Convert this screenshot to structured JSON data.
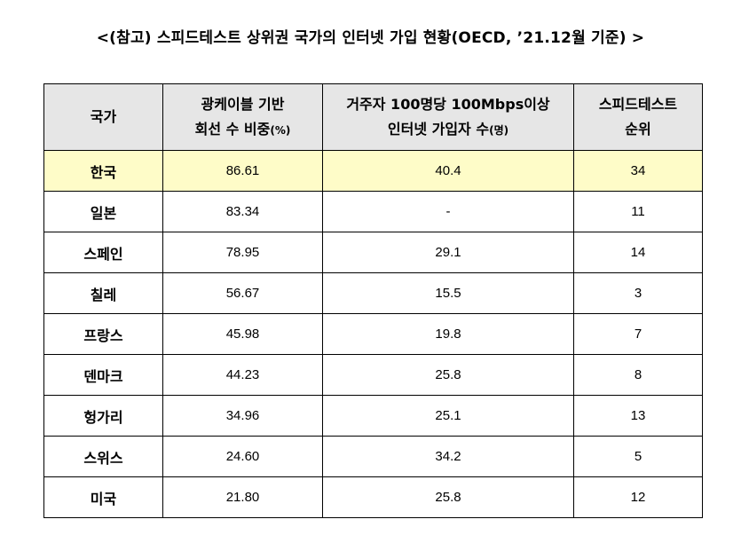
{
  "title": "<(참고) 스피드테스트 상위권 국가의 인터넷 가입 현황(OECD, ’21.12월 기준) >",
  "headers": {
    "country": "국가",
    "fiber_line1": "광케이블 기반",
    "fiber_line2": "회선 수 비중",
    "fiber_unit": "(%)",
    "subs_line1": "거주자 100명당 100Mbps이상",
    "subs_line2": "인터넷 가입자 수",
    "subs_unit": "(명)",
    "rank_line1": "스피드테스트",
    "rank_line2": "순위"
  },
  "rows": [
    {
      "country": "한국",
      "fiber": "86.61",
      "subs": "40.4",
      "rank": "34"
    },
    {
      "country": "일본",
      "fiber": "83.34",
      "subs": "-",
      "rank": "11"
    },
    {
      "country": "스페인",
      "fiber": "78.95",
      "subs": "29.1",
      "rank": "14"
    },
    {
      "country": "칠레",
      "fiber": "56.67",
      "subs": "15.5",
      "rank": "3"
    },
    {
      "country": "프랑스",
      "fiber": "45.98",
      "subs": "19.8",
      "rank": "7"
    },
    {
      "country": "덴마크",
      "fiber": "44.23",
      "subs": "25.8",
      "rank": "8"
    },
    {
      "country": "헝가리",
      "fiber": "34.96",
      "subs": "25.1",
      "rank": "13"
    },
    {
      "country": "스위스",
      "fiber": "24.60",
      "subs": "34.2",
      "rank": "5"
    },
    {
      "country": "미국",
      "fiber": "21.80",
      "subs": "25.8",
      "rank": "12"
    }
  ],
  "colors": {
    "header_background": "#e6e6e6",
    "highlight_row_background": "#fefcc8"
  }
}
